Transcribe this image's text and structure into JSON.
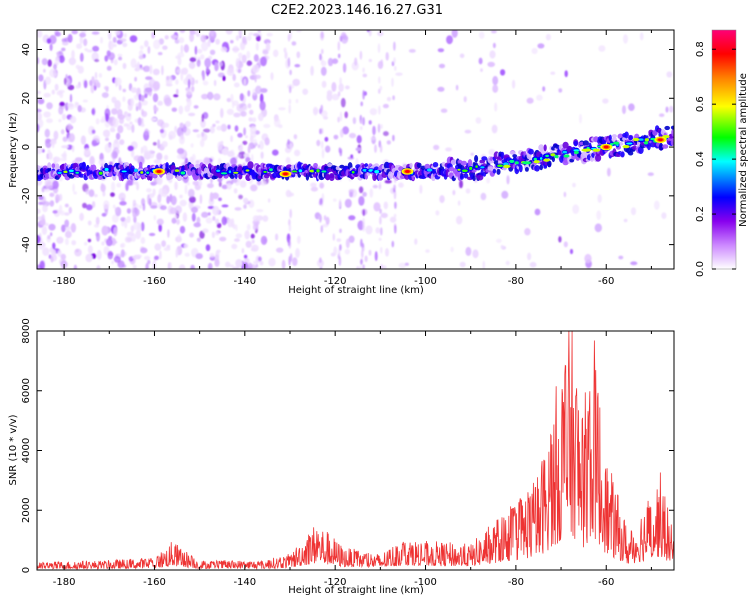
{
  "figure": {
    "title": "C2E2.2023.146.16.27.G31"
  },
  "chart_data": [
    {
      "type": "heatmap",
      "title": "C2E2.2023.146.16.27.G31",
      "xlabel": "Height of straight line (km)",
      "ylabel": "Frequency (Hz)",
      "xlim": [
        -186,
        -45
      ],
      "ylim": [
        -50,
        48
      ],
      "xticks": [
        -180,
        -160,
        -140,
        -120,
        -100,
        -80,
        -60
      ],
      "yticks": [
        -40,
        -20,
        0,
        20,
        40
      ],
      "colorbar": {
        "label": "Normalized spectral amplitude",
        "range": [
          0.0,
          0.87
        ],
        "ticks": [
          0.0,
          0.2,
          0.4,
          0.6,
          0.8
        ],
        "colormap": [
          "#ffffff",
          "#cc88ff",
          "#8800ee",
          "#0000ff",
          "#00ffff",
          "#00ff00",
          "#ffff00",
          "#ff8000",
          "#ff0000",
          "#ff0077"
        ]
      },
      "ridge": {
        "description_points": [
          {
            "x": -186,
            "y": -10
          },
          {
            "x": -100,
            "y": -10
          },
          {
            "x": -90,
            "y": -9
          },
          {
            "x": -80,
            "y": -6
          },
          {
            "x": -70,
            "y": -3
          },
          {
            "x": -60,
            "y": 0
          },
          {
            "x": -50,
            "y": 3
          },
          {
            "x": -45,
            "y": 5
          }
        ],
        "peaks": [
          {
            "x": -159,
            "y": -10,
            "amp": 0.85
          },
          {
            "x": -131,
            "y": -11,
            "amp": 0.85
          },
          {
            "x": -104,
            "y": -10,
            "amp": 0.85
          },
          {
            "x": -60,
            "y": 0,
            "amp": 0.85
          },
          {
            "x": -48,
            "y": 3,
            "amp": 0.87
          }
        ]
      }
    },
    {
      "type": "line",
      "xlabel": "Height of straight line (km)",
      "ylabel": "SNR (10 * v/v)",
      "xlim": [
        -186,
        -45
      ],
      "ylim": [
        0,
        8000
      ],
      "xticks": [
        -180,
        -160,
        -140,
        -120,
        -100,
        -80,
        -60
      ],
      "yticks": [
        0,
        2000,
        4000,
        6000,
        8000
      ],
      "color": "#ee3333",
      "envelope": [
        {
          "x": -186,
          "y": 250
        },
        {
          "x": -170,
          "y": 300
        },
        {
          "x": -160,
          "y": 400
        },
        {
          "x": -156,
          "y": 900
        },
        {
          "x": -150,
          "y": 300
        },
        {
          "x": -136,
          "y": 300
        },
        {
          "x": -130,
          "y": 500
        },
        {
          "x": -126,
          "y": 1200
        },
        {
          "x": -124,
          "y": 1500
        },
        {
          "x": -118,
          "y": 700
        },
        {
          "x": -110,
          "y": 500
        },
        {
          "x": -105,
          "y": 1000
        },
        {
          "x": -100,
          "y": 900
        },
        {
          "x": -90,
          "y": 800
        },
        {
          "x": -85,
          "y": 1500
        },
        {
          "x": -80,
          "y": 2200
        },
        {
          "x": -75,
          "y": 3000
        },
        {
          "x": -72,
          "y": 5000
        },
        {
          "x": -68,
          "y": 8000
        },
        {
          "x": -65,
          "y": 5000
        },
        {
          "x": -63,
          "y": 7600
        },
        {
          "x": -60,
          "y": 3500
        },
        {
          "x": -55,
          "y": 1200
        },
        {
          "x": -52,
          "y": 2000
        },
        {
          "x": -48,
          "y": 3000
        },
        {
          "x": -45,
          "y": 1000
        }
      ]
    }
  ]
}
